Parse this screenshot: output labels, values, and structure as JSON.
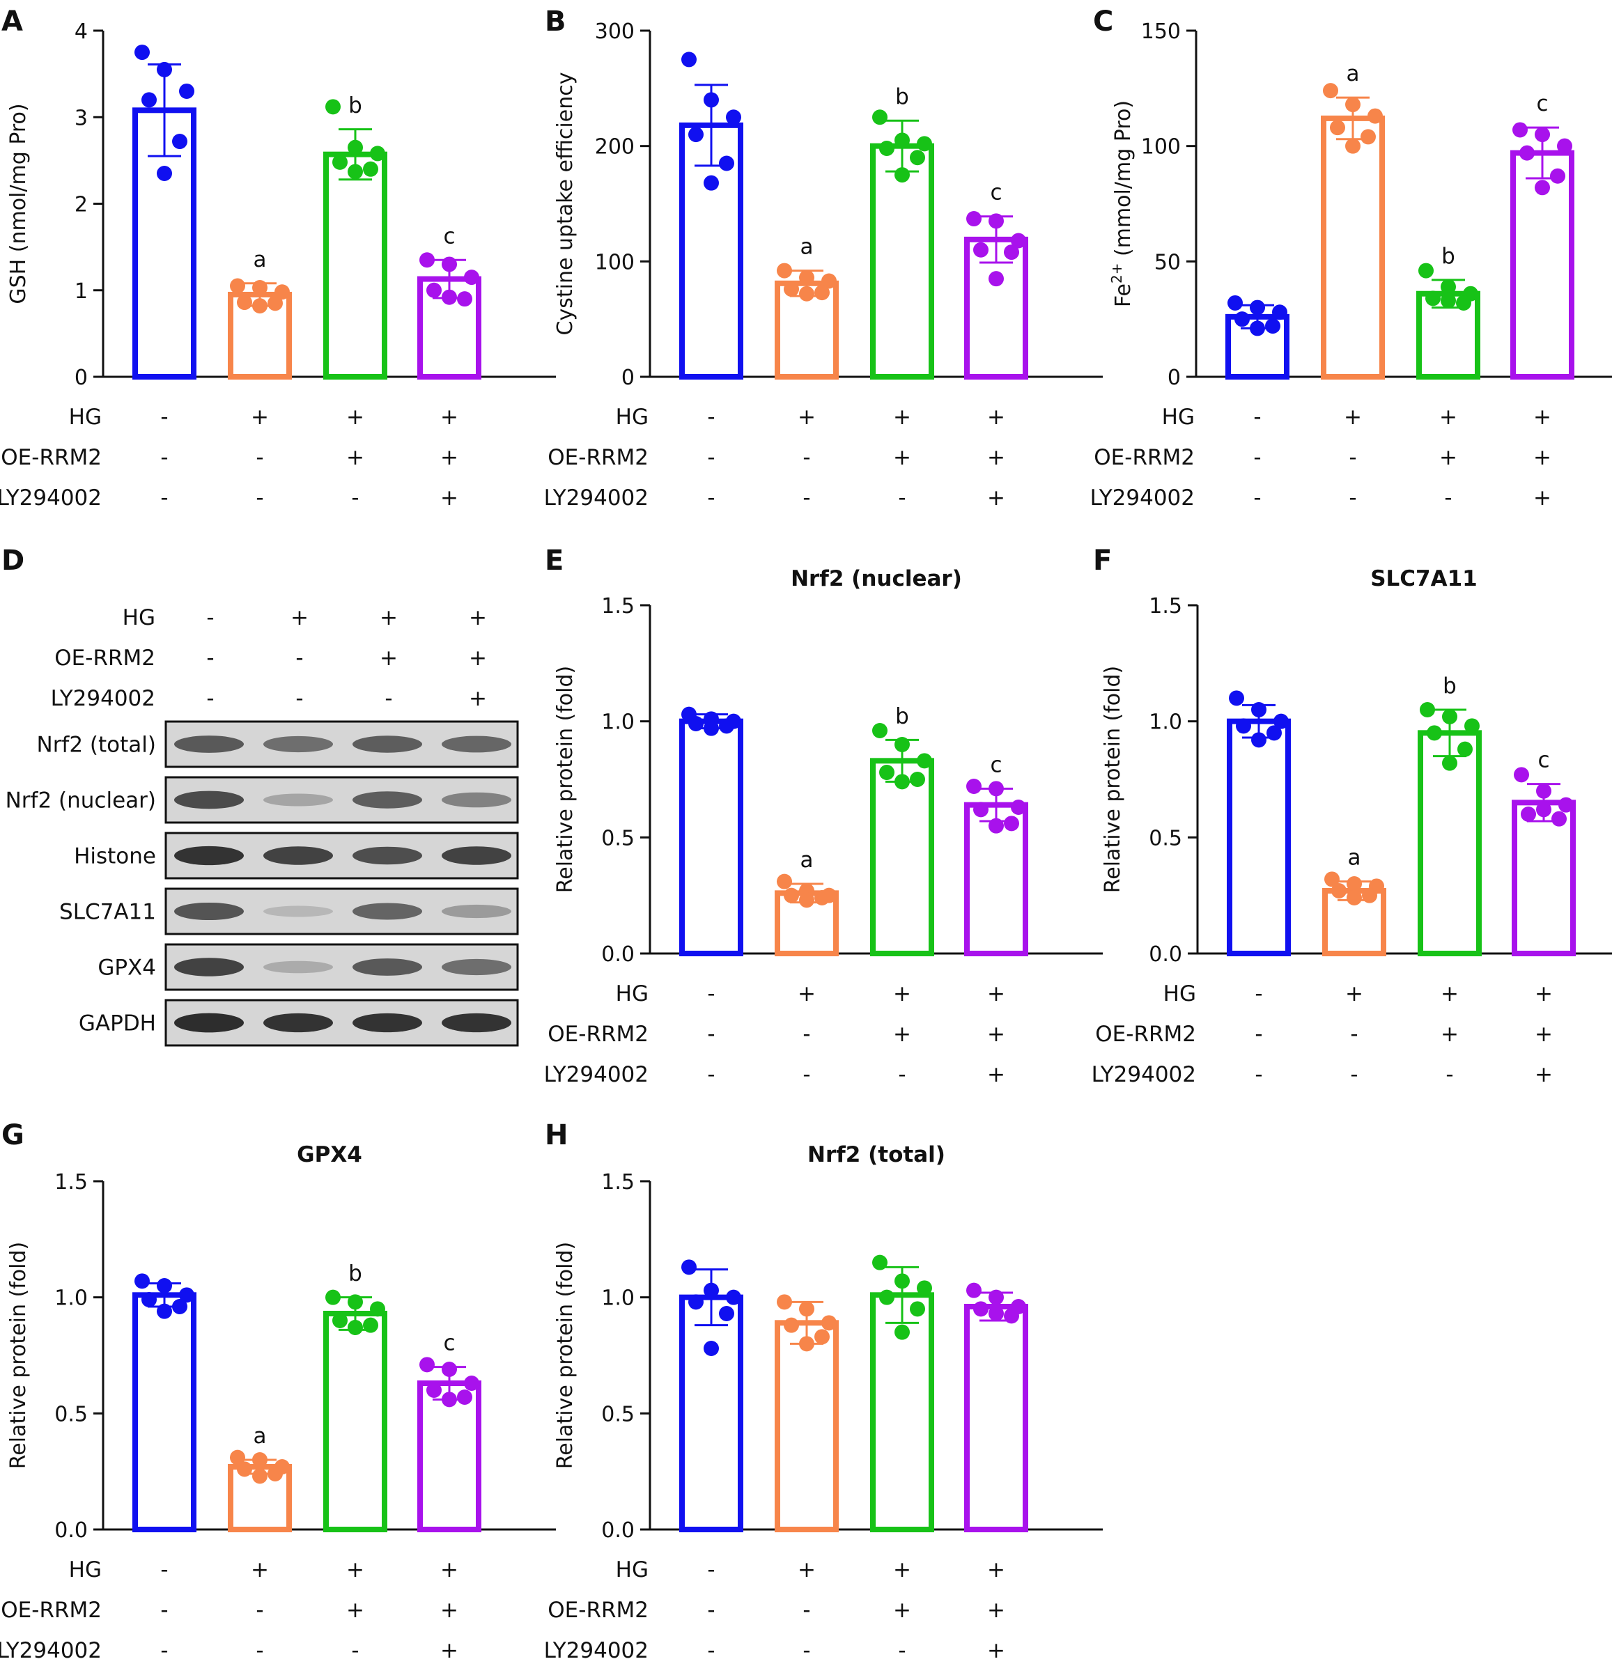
{
  "colors": {
    "groups": [
      "#1010f0",
      "#f7854a",
      "#17c217",
      "#a812ec"
    ],
    "ink": "#111111"
  },
  "treatment_rows": {
    "labels": [
      "HG",
      "OE-RRM2",
      "LY294002"
    ],
    "marks": [
      [
        "-",
        "+",
        "+",
        "+"
      ],
      [
        "-",
        "-",
        "+",
        "+"
      ],
      [
        "-",
        "-",
        "-",
        "+"
      ]
    ]
  },
  "western_blot": {
    "panel_letter": "D",
    "bands": [
      {
        "label": "Nrf2 (total)",
        "intensity": [
          0.8,
          0.7,
          0.78,
          0.74
        ]
      },
      {
        "label": "Nrf2 (nuclear)",
        "intensity": [
          0.86,
          0.38,
          0.78,
          0.6
        ]
      },
      {
        "label": "Histone",
        "intensity": [
          0.96,
          0.9,
          0.85,
          0.9
        ]
      },
      {
        "label": "SLC7A11",
        "intensity": [
          0.82,
          0.25,
          0.75,
          0.45
        ]
      },
      {
        "label": "GPX4",
        "intensity": [
          0.9,
          0.35,
          0.8,
          0.7
        ]
      },
      {
        "label": "GAPDH",
        "intensity": [
          0.98,
          0.96,
          0.96,
          0.96
        ]
      }
    ]
  },
  "chart_data": [
    {
      "panel": "A",
      "type": "bar",
      "title": "",
      "ylabel": "GSH (nmol/mg Pro)",
      "ylim": [
        0,
        4
      ],
      "yticks": [
        "0",
        "1",
        "2",
        "3",
        "4"
      ],
      "values": [
        3.08,
        0.95,
        2.57,
        1.13
      ],
      "sd": [
        0.53,
        0.13,
        0.29,
        0.22
      ],
      "letters": [
        "",
        "a",
        "b",
        "c"
      ],
      "points": [
        [
          3.75,
          3.55,
          3.3,
          3.2,
          2.72,
          2.35
        ],
        [
          1.05,
          1.03,
          0.98,
          0.86,
          0.85,
          0.82
        ],
        [
          3.12,
          2.65,
          2.58,
          2.48,
          2.4,
          2.37
        ],
        [
          1.35,
          1.3,
          1.15,
          1.0,
          0.9,
          0.92
        ]
      ]
    },
    {
      "panel": "B",
      "type": "bar",
      "title": "",
      "ylabel": "Cystine uptake efficiency",
      "ylim": [
        0,
        300
      ],
      "yticks": [
        "0",
        "100",
        "200",
        "300"
      ],
      "values": [
        218,
        81,
        200,
        119
      ],
      "sd": [
        35,
        11,
        22,
        20
      ],
      "letters": [
        "",
        "a",
        "b",
        "c"
      ],
      "points": [
        [
          275,
          240,
          225,
          210,
          185,
          168
        ],
        [
          92,
          86,
          83,
          76,
          73,
          72
        ],
        [
          225,
          205,
          202,
          198,
          190,
          175
        ],
        [
          137,
          135,
          118,
          110,
          108,
          85
        ]
      ]
    },
    {
      "panel": "C",
      "type": "bar",
      "title": "",
      "ylabel": "Fe2+ (mmol/mg Pro)",
      "ylim": [
        0,
        150
      ],
      "yticks": [
        "0",
        "50",
        "100",
        "150"
      ],
      "values": [
        26,
        112,
        36,
        97
      ],
      "sd": [
        5,
        9,
        6,
        11
      ],
      "letters": [
        "",
        "a",
        "b",
        "c"
      ],
      "points": [
        [
          32,
          30,
          28,
          25,
          22,
          21
        ],
        [
          124,
          118,
          113,
          108,
          104,
          100
        ],
        [
          46,
          39,
          36,
          34,
          32,
          33
        ],
        [
          107,
          105,
          100,
          97,
          87,
          82
        ]
      ]
    },
    {
      "panel": "E",
      "type": "bar",
      "title": "Nrf2 (nuclear)",
      "ylabel": "Relative protein (fold)",
      "ylim": [
        0,
        1.5
      ],
      "yticks": [
        "0.0",
        "0.5",
        "1.0",
        "1.5"
      ],
      "values": [
        1.0,
        0.26,
        0.83,
        0.64
      ],
      "sd": [
        0.03,
        0.04,
        0.09,
        0.07
      ],
      "letters": [
        "",
        "a",
        "b",
        "c"
      ],
      "points": [
        [
          1.03,
          1.01,
          1.0,
          0.99,
          0.98,
          0.97
        ],
        [
          0.31,
          0.27,
          0.25,
          0.25,
          0.24,
          0.23
        ],
        [
          0.96,
          0.9,
          0.83,
          0.78,
          0.75,
          0.74
        ],
        [
          0.72,
          0.71,
          0.63,
          0.62,
          0.56,
          0.55
        ]
      ]
    },
    {
      "panel": "F",
      "type": "bar",
      "title": "SLC7A11",
      "ylabel": "Relative protein (fold)",
      "ylim": [
        0,
        1.5
      ],
      "yticks": [
        "0.0",
        "0.5",
        "1.0",
        "1.5"
      ],
      "values": [
        1.0,
        0.27,
        0.95,
        0.65
      ],
      "sd": [
        0.07,
        0.04,
        0.1,
        0.08
      ],
      "letters": [
        "",
        "a",
        "b",
        "c"
      ],
      "points": [
        [
          1.1,
          1.05,
          1.0,
          0.98,
          0.95,
          0.92
        ],
        [
          0.32,
          0.3,
          0.29,
          0.27,
          0.25,
          0.24
        ],
        [
          1.05,
          1.02,
          0.98,
          0.95,
          0.88,
          0.82
        ],
        [
          0.77,
          0.7,
          0.64,
          0.6,
          0.58,
          0.62
        ]
      ]
    },
    {
      "panel": "G",
      "type": "bar",
      "title": "GPX4",
      "ylabel": "Relative protein (fold)",
      "ylim": [
        0,
        1.5
      ],
      "yticks": [
        "0.0",
        "0.5",
        "1.0",
        "1.5"
      ],
      "values": [
        1.01,
        0.27,
        0.93,
        0.63
      ],
      "sd": [
        0.05,
        0.03,
        0.07,
        0.07
      ],
      "letters": [
        "",
        "a",
        "b",
        "c"
      ],
      "points": [
        [
          1.07,
          1.05,
          1.01,
          0.99,
          0.96,
          0.94
        ],
        [
          0.31,
          0.3,
          0.27,
          0.26,
          0.24,
          0.23
        ],
        [
          1.0,
          0.98,
          0.95,
          0.9,
          0.88,
          0.87
        ],
        [
          0.71,
          0.69,
          0.63,
          0.6,
          0.57,
          0.56
        ]
      ]
    },
    {
      "panel": "H",
      "type": "bar",
      "title": "Nrf2 (total)",
      "ylabel": "Relative protein (fold)",
      "ylim": [
        0,
        1.5
      ],
      "yticks": [
        "0.0",
        "0.5",
        "1.0",
        "1.5"
      ],
      "values": [
        1.0,
        0.89,
        1.01,
        0.96
      ],
      "sd": [
        0.12,
        0.09,
        0.12,
        0.06
      ],
      "letters": [
        "",
        "",
        "",
        ""
      ],
      "points": [
        [
          1.13,
          1.03,
          1.0,
          0.98,
          0.93,
          0.78
        ],
        [
          0.98,
          0.95,
          0.89,
          0.88,
          0.83,
          0.8
        ],
        [
          1.15,
          1.07,
          1.04,
          1.0,
          0.95,
          0.85
        ],
        [
          1.03,
          1.0,
          0.96,
          0.95,
          0.92,
          0.93
        ]
      ]
    }
  ]
}
